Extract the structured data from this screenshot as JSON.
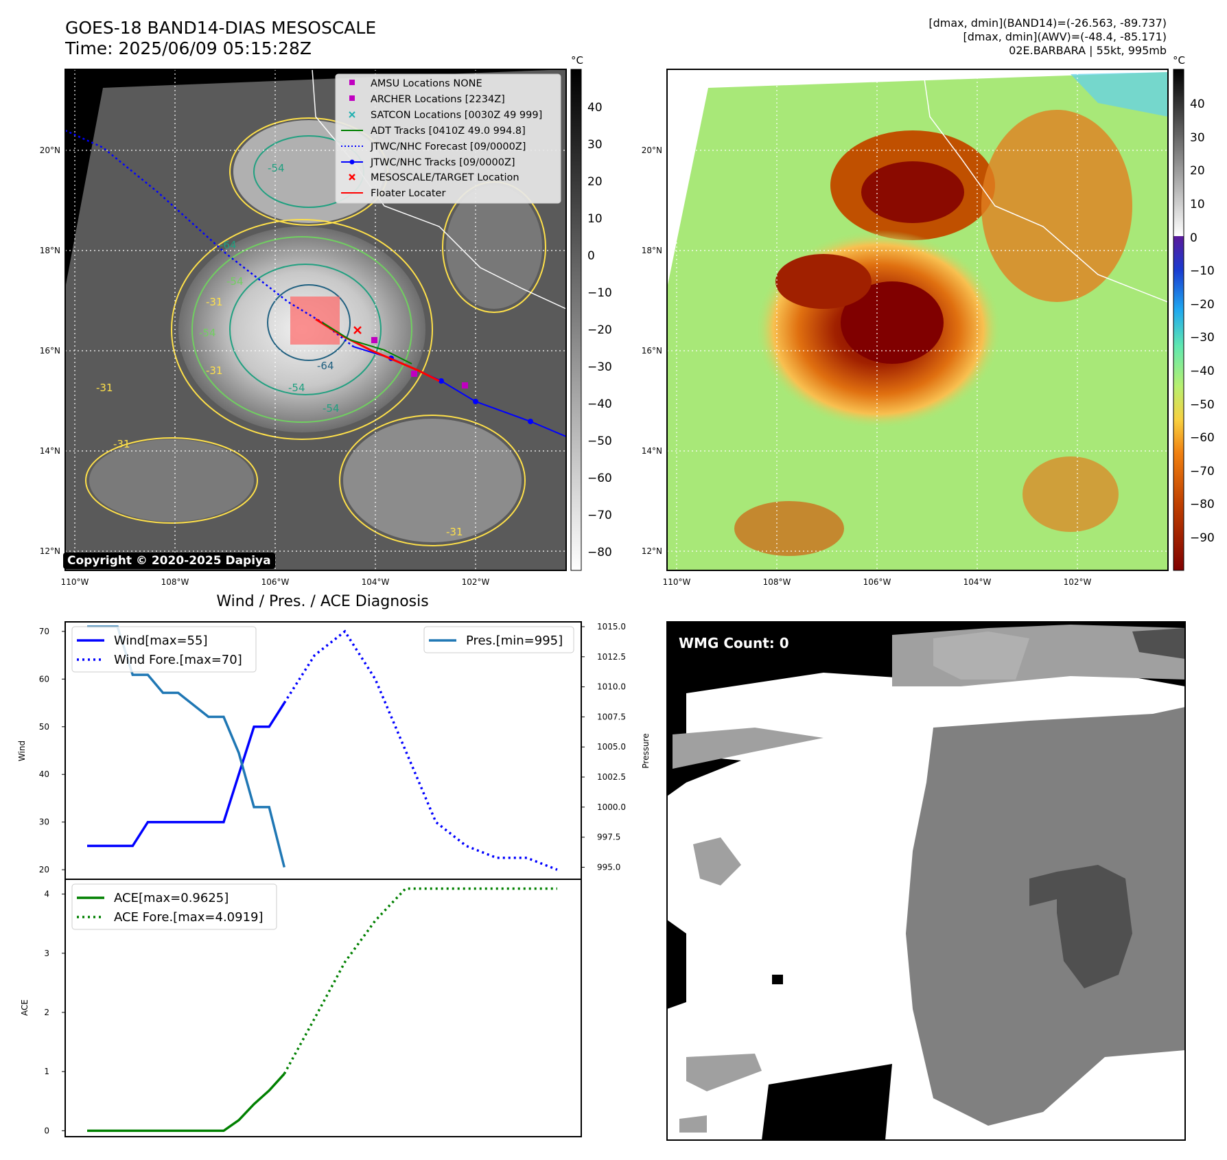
{
  "header": {
    "title_line1": "GOES-18 BAND14-DIAS MESOSCALE",
    "title_line2": "Time: 2025/06/09 05:15:28Z",
    "stats_line1": "[dmax, dmin](BAND14)=(-26.563, -89.737)",
    "stats_line2": "[dmax, dmin](AWV)=(-48.4, -85.171)",
    "stats_line3": "02E.BARBARA | 55kt, 995mb"
  },
  "copyright": "Copyright © 2020-2025 Dapiya",
  "wmg_label": "WMG Count: 0",
  "diagnosis_title": "Wind / Pres. / ACE Diagnosis",
  "colorbar_unit": "°C",
  "map": {
    "lat_labels": [
      "20°N",
      "18°N",
      "16°N",
      "14°N",
      "12°N"
    ],
    "lon_labels": [
      "110°W",
      "108°W",
      "106°W",
      "104°W",
      "102°W"
    ],
    "contour_labels": [
      "-54",
      "-64",
      "-54",
      "-31",
      "-54",
      "-64",
      "-54",
      "-31",
      "-31",
      "-31",
      "-54",
      "-31"
    ]
  },
  "legend_ir": [
    {
      "marker": "square",
      "color": "#c000c0",
      "label": "AMSU Locations NONE"
    },
    {
      "marker": "square",
      "color": "#c000c0",
      "label": "ARCHER Locations [2234Z]"
    },
    {
      "marker": "x",
      "color": "#20b0b0",
      "label": "SATCON Locations [0030Z 49 999]"
    },
    {
      "marker": "line",
      "color": "#008000",
      "label": "ADT Tracks [0410Z 49.0 994.8]"
    },
    {
      "marker": "dotted",
      "color": "#0000ff",
      "label": "JTWC/NHC Forecast [09/0000Z]"
    },
    {
      "marker": "line-dot",
      "color": "#0000ff",
      "label": "JTWC/NHC Tracks [09/0000Z]"
    },
    {
      "marker": "x",
      "color": "#ff0000",
      "label": "MESOSCALE/TARGET Location"
    },
    {
      "marker": "line",
      "color": "#ff0000",
      "label": "Floater Locater"
    }
  ],
  "colorbar_gray_ticks": [
    "40",
    "30",
    "20",
    "10",
    "0",
    "−10",
    "−20",
    "−30",
    "−40",
    "−50",
    "−60",
    "−70",
    "−80"
  ],
  "colorbar_color_ticks": [
    "40",
    "30",
    "20",
    "10",
    "0",
    "−10",
    "−20",
    "−30",
    "−40",
    "−50",
    "−60",
    "−70",
    "−80",
    "−90"
  ],
  "chart_data": [
    {
      "type": "line",
      "ylabel": "Wind",
      "ylim": [
        18,
        72
      ],
      "yticks": [
        "70",
        "60",
        "50",
        "40",
        "30",
        "20"
      ],
      "series": [
        {
          "name": "Wind[max=55]",
          "style": "solid",
          "color": "#0000ff",
          "x": [
            0,
            1,
            2,
            3,
            4,
            5,
            6,
            7,
            8,
            9,
            10,
            11,
            12,
            13
          ],
          "values": [
            25,
            25,
            25,
            25,
            30,
            30,
            30,
            30,
            30,
            30,
            40,
            50,
            50,
            55
          ]
        },
        {
          "name": "Wind Fore.[max=70]",
          "style": "dotted",
          "color": "#0000ff",
          "x": [
            13,
            15,
            17,
            19,
            21,
            23,
            25,
            27,
            29,
            31
          ],
          "values": [
            55,
            65,
            70,
            60,
            45,
            30,
            25,
            22.5,
            22.5,
            20
          ]
        }
      ]
    },
    {
      "type": "line",
      "ylabel": "Pressure",
      "ylim": [
        994.0,
        1015.4
      ],
      "yticks": [
        "1015.0",
        "1012.5",
        "1010.0",
        "1007.5",
        "1005.0",
        "1002.5",
        "1000.0",
        "997.5",
        "995.0"
      ],
      "series": [
        {
          "name": "Pres.[min=995]",
          "style": "solid",
          "color": "#1f77b4",
          "x": [
            0,
            1,
            2,
            3,
            4,
            5,
            6,
            7,
            8,
            9,
            10,
            11,
            12,
            13
          ],
          "values": [
            1015,
            1015,
            1015,
            1011,
            1011,
            1009.5,
            1009.5,
            1008.5,
            1007.5,
            1007.5,
            1004.5,
            1000,
            1000,
            995
          ]
        }
      ]
    },
    {
      "type": "line",
      "ylabel": "ACE",
      "ylim": [
        -0.1,
        4.25
      ],
      "yticks": [
        "4",
        "3",
        "2",
        "1",
        "0"
      ],
      "series": [
        {
          "name": "ACE[max=0.9625]",
          "style": "solid",
          "color": "#008000",
          "x": [
            0,
            1,
            2,
            3,
            4,
            5,
            6,
            7,
            8,
            9,
            10,
            11,
            12,
            13
          ],
          "values": [
            0,
            0,
            0,
            0,
            0,
            0,
            0,
            0,
            0,
            0,
            0.18,
            0.45,
            0.68,
            0.9625
          ]
        },
        {
          "name": "ACE Fore.[max=4.0919]",
          "style": "dotted",
          "color": "#008000",
          "x": [
            13,
            15,
            17,
            19,
            21,
            23,
            25,
            27,
            29,
            31
          ],
          "values": [
            0.9625,
            1.9,
            2.85,
            3.55,
            4.0919,
            4.0919,
            4.0919,
            4.0919,
            4.0919,
            4.0919
          ]
        }
      ]
    }
  ]
}
